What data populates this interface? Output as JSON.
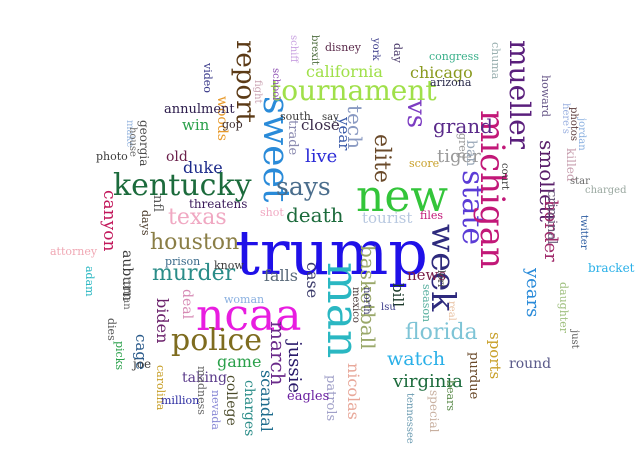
{
  "words": [
    {
      "text": "trump",
      "color": "#1f10e8"
    },
    {
      "text": "ncaa",
      "color": "#e81de0"
    },
    {
      "text": "new",
      "color": "#33c53a"
    },
    {
      "text": "man",
      "color": "#2ab7c2"
    },
    {
      "text": "sweet",
      "color": "#2a8bd9"
    },
    {
      "text": "kentucky",
      "color": "#1c6b3c"
    },
    {
      "text": "police",
      "color": "#7e6c1f"
    },
    {
      "text": "tournament",
      "color": "#a0e04a"
    },
    {
      "text": "says",
      "color": "#4a6d8c"
    },
    {
      "text": "state",
      "color": "#5b3cd6"
    },
    {
      "text": "michigan",
      "color": "#c21878"
    },
    {
      "text": "week",
      "color": "#2e2a7d"
    },
    {
      "text": "mueller",
      "color": "#5a1f7c"
    },
    {
      "text": "report",
      "color": "#5b3a16"
    },
    {
      "text": "vs",
      "color": "#7c3cc2"
    },
    {
      "text": "houston",
      "color": "#8a7e46"
    },
    {
      "text": "murder",
      "color": "#2a8c88"
    },
    {
      "text": "texas",
      "color": "#f0a8c2"
    },
    {
      "text": "florida",
      "color": "#7ec4d6"
    },
    {
      "text": "grand",
      "color": "#5a2a8a"
    },
    {
      "text": "california",
      "color": "#a0e04a"
    },
    {
      "text": "elite",
      "color": "#6a4a2a"
    },
    {
      "text": "tech",
      "color": "#8a9ac2"
    },
    {
      "text": "tiger",
      "color": "#9a9a9a"
    },
    {
      "text": "live",
      "color": "#2a2ad6"
    },
    {
      "text": "death",
      "color": "#1c6b3c"
    },
    {
      "text": "duke",
      "color": "#1c2a8a"
    },
    {
      "text": "biden",
      "color": "#6a1f6a"
    },
    {
      "text": "deal",
      "color": "#d68ab4"
    },
    {
      "text": "canyon",
      "color": "#c2185b"
    },
    {
      "text": "auburn",
      "color": "#3a3a3a"
    },
    {
      "text": "jussie",
      "color": "#2a1a6a"
    },
    {
      "text": "march",
      "color": "#6a2a8a"
    },
    {
      "text": "basketball",
      "color": "#9aa86a"
    },
    {
      "text": "watch",
      "color": "#2ab0e8"
    },
    {
      "text": "virginia",
      "color": "#1c6b3c"
    },
    {
      "text": "smollett",
      "color": "#5a1f6a"
    },
    {
      "text": "border",
      "color": "#a02a6a"
    },
    {
      "text": "years",
      "color": "#2a8bd9"
    },
    {
      "text": "game",
      "color": "#2aa04a"
    },
    {
      "text": "scandal",
      "color": "#1c6b8c"
    },
    {
      "text": "charges",
      "color": "#2a8c88"
    },
    {
      "text": "case",
      "color": "#3a3a6a"
    },
    {
      "text": "falls",
      "color": "#5a6a7a"
    },
    {
      "text": "nicolas",
      "color": "#e8a89a"
    },
    {
      "text": "patrols",
      "color": "#a0a0c8"
    },
    {
      "text": "bill",
      "color": "#1c3a2a"
    },
    {
      "text": "news",
      "color": "#7a1f4a"
    },
    {
      "text": "sports",
      "color": "#c8a02a"
    },
    {
      "text": "purdue",
      "color": "#6a4a2a"
    },
    {
      "text": "round",
      "color": "#5a5a8a"
    },
    {
      "text": "chicago",
      "color": "#8a9a1f"
    },
    {
      "text": "close",
      "color": "#3a2a4a"
    },
    {
      "text": "year",
      "color": "#3a5aa8"
    },
    {
      "text": "trade",
      "color": "#8a8ab0"
    },
    {
      "text": "tourist",
      "color": "#b8c8e0"
    },
    {
      "text": "woods",
      "color": "#e89a2a"
    },
    {
      "text": "win",
      "color": "#2aa04a"
    },
    {
      "text": "old",
      "color": "#6a1f4a"
    },
    {
      "text": "nfl",
      "color": "#5a5a5a"
    },
    {
      "text": "cage",
      "color": "#2a5a8a"
    },
    {
      "text": "taking",
      "color": "#5a3a8a"
    },
    {
      "text": "college",
      "color": "#4a4a2a"
    },
    {
      "text": "eagles",
      "color": "#6a1fa0"
    },
    {
      "text": "ban",
      "color": "#9aa8b8"
    },
    {
      "text": "killed",
      "color": "#c8a0b0"
    },
    {
      "text": "criminal",
      "color": "#6a5a7a"
    },
    {
      "text": "annulment",
      "color": "#2a1a4a"
    },
    {
      "text": "georgia",
      "color": "#4a4a4a"
    },
    {
      "text": "threatens",
      "color": "#3a1a5a"
    },
    {
      "text": "prison",
      "color": "#3a6a8a"
    },
    {
      "text": "days",
      "color": "#4a3a2a"
    },
    {
      "text": "joe",
      "color": "#3a3a3a"
    },
    {
      "text": "carolina",
      "color": "#c8a02a"
    },
    {
      "text": "million",
      "color": "#2a2aa0"
    },
    {
      "text": "madness",
      "color": "#6a6a6a"
    },
    {
      "text": "nevada",
      "color": "#8a8ad6"
    },
    {
      "text": "picks",
      "color": "#2aa04a"
    },
    {
      "text": "dies",
      "color": "#5a5a5a"
    },
    {
      "text": "attorney",
      "color": "#f0a8b4"
    },
    {
      "text": "adam",
      "color": "#2ab7c2"
    },
    {
      "text": "schiff",
      "color": "#c8a0e0"
    },
    {
      "text": "photo",
      "color": "#3a3a3a"
    },
    {
      "text": "make",
      "color": "#9ab8e0"
    },
    {
      "text": "house",
      "color": "#6a6a6a"
    },
    {
      "text": "video",
      "color": "#3a3a8a"
    },
    {
      "text": "gop",
      "color": "#3a2a2a"
    },
    {
      "text": "fight",
      "color": "#c8a0b0"
    },
    {
      "text": "school",
      "color": "#8a4ab0"
    },
    {
      "text": "south",
      "color": "#3a3a3a"
    },
    {
      "text": "say",
      "color": "#3a3a3a"
    },
    {
      "text": "brexit",
      "color": "#4a6a3a"
    },
    {
      "text": "disney",
      "color": "#5a2a4a"
    },
    {
      "text": "york",
      "color": "#3a3a8a"
    },
    {
      "text": "day",
      "color": "#4a3a6a"
    },
    {
      "text": "arizona",
      "color": "#2a2a4a"
    },
    {
      "text": "congress",
      "color": "#3ab08a"
    },
    {
      "text": "chuma",
      "color": "#9ab0b0"
    },
    {
      "text": "howard",
      "color": "#6a5a8a"
    },
    {
      "text": "here's",
      "color": "#9ab0e0"
    },
    {
      "text": "jordan",
      "color": "#8ab0e0"
    },
    {
      "text": "greg",
      "color": "#9a9a9a"
    },
    {
      "text": "score",
      "color": "#c8a02a"
    },
    {
      "text": "court",
      "color": "#3a3a3a"
    },
    {
      "text": "photos",
      "color": "#5a3a3a"
    },
    {
      "text": "star",
      "color": "#6a6a6a"
    },
    {
      "text": "charged",
      "color": "#9aa8a0"
    },
    {
      "text": "twitter",
      "color": "#2a5aa0"
    },
    {
      "text": "bracket",
      "color": "#2ab0e8"
    },
    {
      "text": "daughter",
      "color": "#a0c080"
    },
    {
      "text": "just",
      "color": "#5a5a5a"
    },
    {
      "text": "files",
      "color": "#c21878"
    },
    {
      "text": "shot",
      "color": "#f0a8c2"
    },
    {
      "text": "know",
      "color": "#3a3a3a"
    },
    {
      "text": "woman",
      "color": "#8ab0e0"
    },
    {
      "text": "mexico",
      "color": "#4a3a3a"
    },
    {
      "text": "north",
      "color": "#3a3a6a"
    },
    {
      "text": "season",
      "color": "#5ab0a0"
    },
    {
      "text": "lsu",
      "color": "#3a3a8a"
    },
    {
      "text": "lori",
      "color": "#4a4a4a"
    },
    {
      "text": "real",
      "color": "#e8c0a0"
    },
    {
      "text": "bears",
      "color": "#5a8a4a"
    },
    {
      "text": "special",
      "color": "#c8b0a0"
    },
    {
      "text": "tennessee",
      "color": "#6a9ab0"
    },
    {
      "text": "roman",
      "color": "#6a6a6a"
    }
  ]
}
